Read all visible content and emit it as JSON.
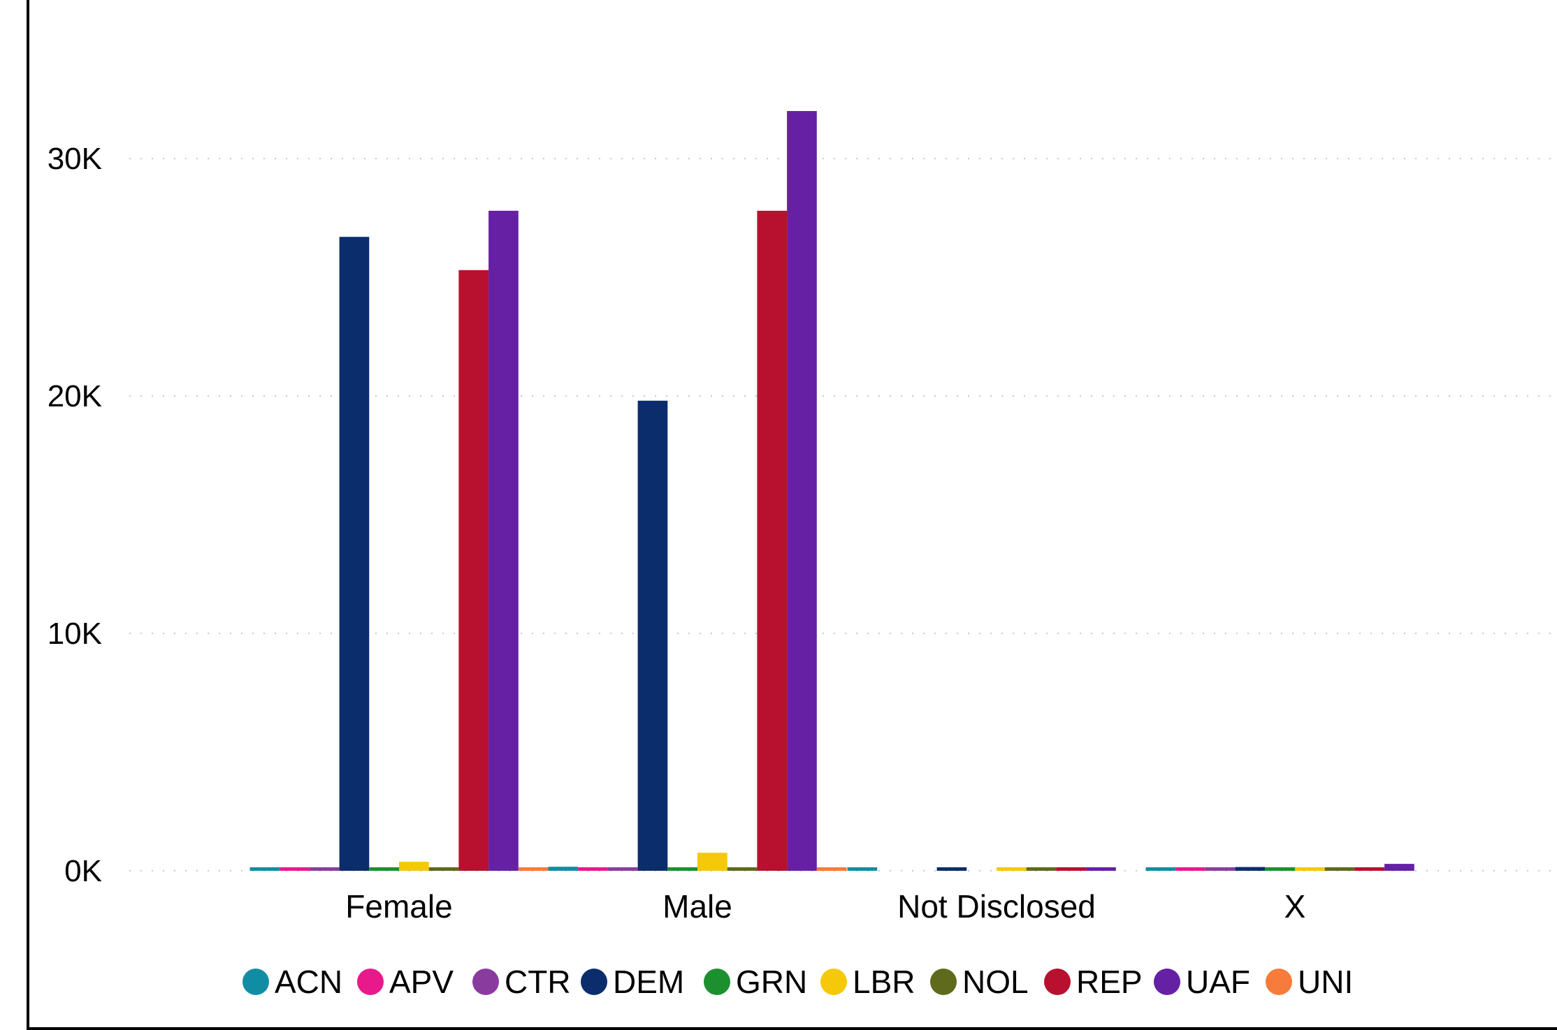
{
  "chart_data": {
    "type": "bar",
    "categories": [
      "Female",
      "Male",
      "Not Disclosed",
      "X"
    ],
    "y_ticks": [
      "0K",
      "10K",
      "20K",
      "30K"
    ],
    "ylim": [
      0,
      36000
    ],
    "grid": "horizontal-dotted",
    "legend_position": "bottom",
    "series": [
      {
        "name": "ACN",
        "color": "#118DA3",
        "values": [
          120,
          170,
          120,
          120
        ]
      },
      {
        "name": "APV",
        "color": "#E8198B",
        "values": [
          110,
          110,
          null,
          110
        ]
      },
      {
        "name": "CTR",
        "color": "#8A3C9E",
        "values": [
          100,
          100,
          null,
          100
        ]
      },
      {
        "name": "DEM",
        "color": "#0B2D6B",
        "values": [
          26700,
          19800,
          130,
          160
        ]
      },
      {
        "name": "GRN",
        "color": "#1C8F2E",
        "values": [
          100,
          100,
          null,
          100
        ]
      },
      {
        "name": "LBR",
        "color": "#F5C90A",
        "values": [
          380,
          760,
          110,
          120
        ]
      },
      {
        "name": "NOL",
        "color": "#5F6A1C",
        "values": [
          110,
          110,
          110,
          110
        ]
      },
      {
        "name": "REP",
        "color": "#B8102F",
        "values": [
          25300,
          27800,
          110,
          120
        ]
      },
      {
        "name": "UAF",
        "color": "#6620A4",
        "values": [
          27800,
          32000,
          110,
          290
        ]
      },
      {
        "name": "UNI",
        "color": "#F77B3B",
        "values": [
          100,
          100,
          null,
          null
        ]
      }
    ]
  }
}
